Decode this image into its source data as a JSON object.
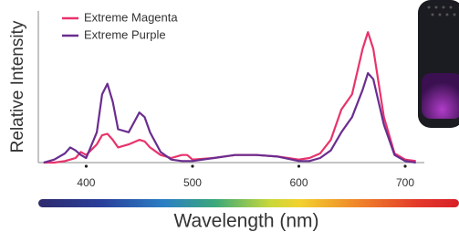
{
  "chart_data": {
    "type": "line",
    "x_label": "Wavelength (nm)",
    "y_label": "Relative Intensity",
    "x": [
      360,
      370,
      380,
      385,
      390,
      395,
      400,
      410,
      415,
      420,
      425,
      430,
      440,
      450,
      455,
      460,
      470,
      480,
      490,
      495,
      500,
      520,
      540,
      560,
      580,
      600,
      610,
      620,
      630,
      640,
      650,
      660,
      665,
      670,
      680,
      690,
      700,
      710
    ],
    "series": [
      {
        "name": "Extreme Magenta",
        "color": "#e8336b",
        "values": [
          0,
          0,
          0.01,
          0.02,
          0.03,
          0.07,
          0.05,
          0.12,
          0.18,
          0.19,
          0.15,
          0.1,
          0.12,
          0.15,
          0.14,
          0.1,
          0.05,
          0.03,
          0.05,
          0.05,
          0.02,
          0.03,
          0.05,
          0.05,
          0.04,
          0.02,
          0.03,
          0.06,
          0.15,
          0.35,
          0.45,
          0.75,
          0.86,
          0.75,
          0.3,
          0.06,
          0.02,
          0.01
        ]
      },
      {
        "name": "Extreme Purple",
        "color": "#6a2d8f",
        "values": [
          0,
          0.02,
          0.06,
          0.1,
          0.08,
          0.05,
          0.03,
          0.2,
          0.45,
          0.52,
          0.4,
          0.22,
          0.2,
          0.33,
          0.3,
          0.2,
          0.07,
          0.02,
          0.01,
          0.01,
          0.01,
          0.03,
          0.05,
          0.05,
          0.04,
          0.01,
          0.01,
          0.03,
          0.08,
          0.2,
          0.3,
          0.48,
          0.59,
          0.55,
          0.25,
          0.05,
          0.01,
          0
        ]
      }
    ],
    "xlim": [
      355,
      718
    ],
    "xticks": [
      400,
      500,
      600,
      700
    ],
    "ylim": [
      0,
      1
    ],
    "legend": "upper-left"
  }
}
